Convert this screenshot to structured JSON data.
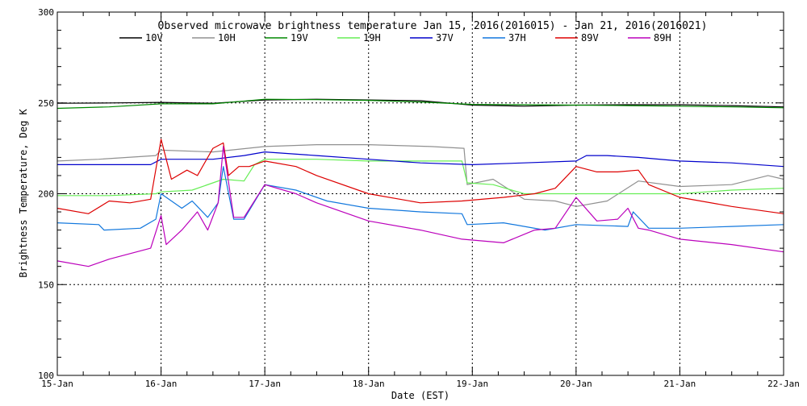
{
  "chart_data": {
    "type": "line",
    "title": "Observed microwave brightness temperature Jan 15, 2016(2016015) - Jan 21, 2016(2016021)",
    "xlabel": "Date (EST)",
    "ylabel": "Brightness Temperature, Deg K",
    "xlim": [
      "15-Jan",
      "22-Jan"
    ],
    "ylim": [
      100,
      300
    ],
    "x_ticks": [
      "15-Jan",
      "16-Jan",
      "17-Jan",
      "18-Jan",
      "19-Jan",
      "20-Jan",
      "21-Jan",
      "22-Jan"
    ],
    "y_ticks": [
      100,
      150,
      200,
      250,
      300
    ],
    "grid": "dotted at major ticks",
    "legend_position": "top, inside plot",
    "series": [
      {
        "name": "10V",
        "color": "#000000",
        "x": [
          0,
          0.5,
          1,
          1.5,
          2,
          2.5,
          3,
          3.5,
          4,
          4.5,
          5,
          5.5,
          6,
          6.5,
          7
        ],
        "values": [
          249.8,
          250.0,
          250.3,
          249.8,
          251.6,
          252.0,
          251.6,
          251.2,
          248.8,
          248.2,
          248.8,
          249.0,
          249.0,
          248.5,
          247.8
        ]
      },
      {
        "name": "10H",
        "color": "#909090",
        "x": [
          0,
          0.4,
          0.95,
          1.0,
          1.5,
          2.0,
          2.5,
          3.0,
          3.6,
          3.92,
          3.95,
          4.2,
          4.5,
          4.8,
          5.0,
          5.3,
          5.6,
          6.0,
          6.5,
          6.85,
          7
        ],
        "values": [
          218,
          219,
          221,
          224,
          223,
          226,
          227,
          227,
          226,
          225,
          205,
          208,
          197,
          196,
          193,
          196,
          207,
          204,
          205,
          210,
          208
        ]
      },
      {
        "name": "19V",
        "color": "#008800",
        "x": [
          0,
          0.5,
          1,
          1.5,
          2,
          2.5,
          3,
          3.5,
          4,
          4.5,
          5,
          5.5,
          6,
          6.5,
          7
        ],
        "values": [
          247.0,
          247.8,
          249.5,
          249.5,
          252.0,
          251.8,
          251.4,
          250.5,
          249.2,
          249.0,
          248.8,
          248.5,
          248.2,
          247.8,
          247.3
        ]
      },
      {
        "name": "19H",
        "color": "#66ee55",
        "x": [
          0,
          0.5,
          0.95,
          1.0,
          1.3,
          1.6,
          1.8,
          1.9,
          2.0,
          2.5,
          3.0,
          3.5,
          3.9,
          3.95,
          4.2,
          4.5,
          5.0,
          5.5,
          6.0,
          6.5,
          7
        ],
        "values": [
          199,
          199,
          200,
          201,
          202,
          208,
          207,
          216,
          219,
          219,
          218,
          218,
          218,
          206,
          205,
          200,
          200,
          200,
          200,
          202,
          203
        ]
      },
      {
        "name": "37V",
        "color": "#0000cc",
        "x": [
          0,
          0.5,
          0.9,
          1.0,
          1.5,
          1.8,
          2.0,
          2.5,
          3.0,
          3.5,
          4.0,
          4.5,
          5.0,
          5.1,
          5.3,
          5.6,
          6.0,
          6.5,
          7
        ],
        "values": [
          216,
          216,
          216,
          219,
          219,
          221,
          223,
          221,
          219,
          217,
          216,
          217,
          218,
          221,
          221,
          220,
          218,
          217,
          215
        ]
      },
      {
        "name": "37H",
        "color": "#1177dd",
        "x": [
          0,
          0.4,
          0.45,
          0.8,
          0.95,
          1.0,
          1.2,
          1.3,
          1.45,
          1.55,
          1.6,
          1.7,
          1.8,
          2.0,
          2.3,
          2.6,
          3.0,
          3.5,
          3.9,
          3.95,
          4.3,
          4.7,
          5.0,
          5.5,
          5.55,
          5.7,
          6.0,
          6.5,
          7
        ],
        "values": [
          184,
          183,
          180,
          181,
          186,
          200,
          192,
          196,
          187,
          195,
          215,
          186,
          186,
          205,
          202,
          196,
          192,
          190,
          189,
          183,
          184,
          180,
          183,
          182,
          190,
          181,
          181,
          182,
          183
        ]
      },
      {
        "name": "89V",
        "color": "#dd0000",
        "x": [
          0,
          0.3,
          0.5,
          0.7,
          0.9,
          1.0,
          1.1,
          1.25,
          1.35,
          1.5,
          1.6,
          1.65,
          1.75,
          1.85,
          2.0,
          2.3,
          2.5,
          3.0,
          3.5,
          3.9,
          4.3,
          4.6,
          4.8,
          5.0,
          5.2,
          5.4,
          5.6,
          5.7,
          6.0,
          6.5,
          7
        ],
        "values": [
          192,
          189,
          196,
          195,
          197,
          230,
          208,
          213,
          210,
          225,
          228,
          210,
          215,
          215,
          218,
          215,
          210,
          200,
          195,
          196,
          198,
          200,
          203,
          215,
          212,
          212,
          213,
          205,
          198,
          193,
          189
        ]
      },
      {
        "name": "89H",
        "color": "#bb00bb",
        "x": [
          0,
          0.3,
          0.5,
          0.9,
          1.0,
          1.05,
          1.2,
          1.35,
          1.45,
          1.55,
          1.6,
          1.7,
          1.8,
          2.0,
          2.3,
          2.5,
          3.0,
          3.5,
          3.9,
          4.3,
          4.6,
          4.8,
          5.0,
          5.2,
          5.4,
          5.5,
          5.6,
          5.7,
          6.0,
          6.5,
          7
        ],
        "values": [
          163,
          160,
          164,
          170,
          188,
          172,
          180,
          190,
          180,
          195,
          226,
          187,
          187,
          205,
          200,
          195,
          185,
          180,
          175,
          173,
          180,
          181,
          198,
          185,
          186,
          192,
          181,
          180,
          175,
          172,
          168
        ]
      }
    ]
  }
}
